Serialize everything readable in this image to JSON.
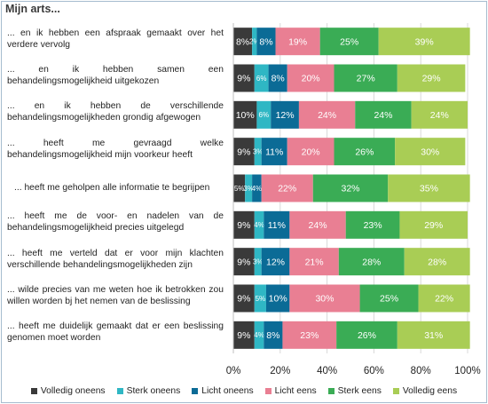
{
  "chart_data": {
    "type": "bar",
    "orientation": "horizontal",
    "stacked": true,
    "title": "Mijn arts...",
    "categories": [
      "... en ik hebben een afspraak gemaakt over het verdere vervolg",
      "... en ik hebben samen een behandelingsmogelijkheid uitgekozen",
      "... en ik hebben de verschillende behandelingsmogelijkheden grondig afgewogen",
      "... heeft me gevraagd welke behandelingsmogelijkheid mijn voorkeur heeft",
      "... heeft me geholpen alle informatie te begrijpen",
      "... heeft me de voor- en nadelen van de behandelingsmogelijkheid precies uitgelegd",
      "... heeft me verteld dat er voor mijn klachten verschillende behandelingsmogelijkheden zijn",
      "... wilde precies van me weten hoe ik betrokken zou willen worden bj het nemen van de beslissing",
      "... heeft me duidelijk gemaakt dat er een beslissing genomen moet worden"
    ],
    "series": [
      {
        "name": "Volledig oneens",
        "color": "#3a3a3a",
        "values": [
          8,
          9,
          10,
          9,
          5,
          9,
          9,
          9,
          9
        ]
      },
      {
        "name": "Sterk oneens",
        "color": "#2fb7c4",
        "values": [
          2,
          6,
          6,
          3,
          3,
          4,
          3,
          5,
          4
        ]
      },
      {
        "name": "Licht oneens",
        "color": "#0b6b96",
        "values": [
          8,
          8,
          12,
          11,
          4,
          11,
          12,
          10,
          8
        ]
      },
      {
        "name": "Licht eens",
        "color": "#e97f93",
        "values": [
          19,
          20,
          24,
          20,
          22,
          24,
          21,
          30,
          23
        ]
      },
      {
        "name": "Sterk eens",
        "color": "#3aac55",
        "values": [
          25,
          27,
          24,
          26,
          32,
          23,
          28,
          25,
          26
        ]
      },
      {
        "name": "Volledig eens",
        "color": "#a9cd55",
        "values": [
          39,
          29,
          24,
          30,
          35,
          29,
          28,
          22,
          31
        ]
      }
    ],
    "xlim": [
      0,
      100
    ],
    "xticks": [
      "0%",
      "20%",
      "40%",
      "60%",
      "80%",
      "100%"
    ],
    "value_suffix": "%",
    "grid": true,
    "legend_position": "bottom"
  }
}
